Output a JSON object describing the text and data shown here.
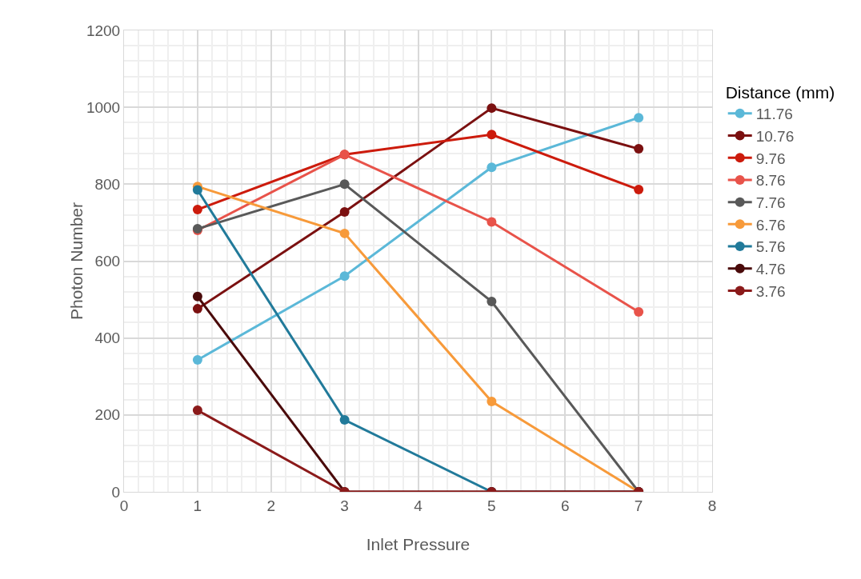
{
  "chart_data": {
    "type": "line",
    "xlabel": "Inlet Pressure",
    "ylabel": "Photon Number",
    "legend_title": "Distance (mm)",
    "x": [
      1,
      3,
      5,
      7
    ],
    "xlim": [
      0,
      8
    ],
    "xticks": [
      0,
      1,
      2,
      3,
      4,
      5,
      6,
      7,
      8
    ],
    "ylim": [
      0,
      1200
    ],
    "yticks": [
      0,
      200,
      400,
      600,
      800,
      1000,
      1200
    ],
    "grid": true,
    "legend": "right",
    "marker": "circle",
    "line_style": "solid",
    "series": [
      {
        "name": "11.76",
        "color": "#5bb8d8",
        "values": [
          343,
          561,
          844,
          973
        ]
      },
      {
        "name": "10.76",
        "color": "#7b1010",
        "values": [
          476,
          728,
          998,
          892
        ]
      },
      {
        "name": "9.76",
        "color": "#cc1b0c",
        "values": [
          734,
          877,
          929,
          786
        ]
      },
      {
        "name": "8.76",
        "color": "#e8534a",
        "values": [
          680,
          877,
          702,
          468
        ]
      },
      {
        "name": "7.76",
        "color": "#595959",
        "values": [
          684,
          800,
          495,
          0
        ]
      },
      {
        "name": "6.76",
        "color": "#f79a3a",
        "values": [
          794,
          672,
          235,
          0
        ]
      },
      {
        "name": "5.76",
        "color": "#217a9a",
        "values": [
          785,
          187,
          0,
          0
        ]
      },
      {
        "name": "4.76",
        "color": "#4a0a0a",
        "values": [
          508,
          0,
          0,
          0
        ]
      },
      {
        "name": "3.76",
        "color": "#8b1a1a",
        "values": [
          212,
          0,
          0,
          0
        ]
      }
    ]
  }
}
